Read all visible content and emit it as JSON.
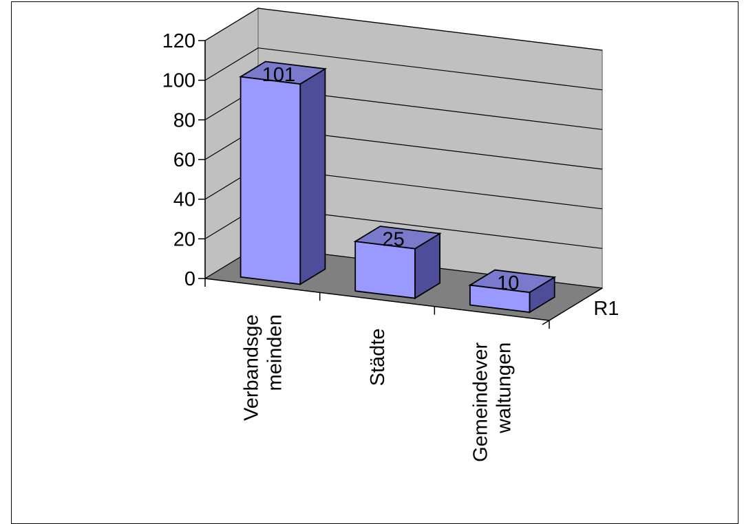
{
  "chart_data": {
    "type": "bar",
    "style": "3d-column",
    "categories": [
      "Verbandsgemeinden",
      "Städte",
      "Gemeindeverwaltungen"
    ],
    "category_label_lines": [
      [
        "Verbandsge",
        "meinden"
      ],
      [
        "Städte"
      ],
      [
        "Gemeindever",
        "waltungen"
      ]
    ],
    "series": [
      {
        "name": "R1",
        "values": [
          101,
          25,
          10
        ]
      }
    ],
    "data_labels": [
      "101",
      "25",
      "10"
    ],
    "yticks": [
      "0",
      "20",
      "40",
      "60",
      "80",
      "100",
      "120"
    ],
    "ylim": [
      0,
      120
    ],
    "grid": true,
    "legend": "none",
    "colors": {
      "bar_front": "#9999ff",
      "bar_side": "#4d4d99",
      "bar_top": "#7a7acc",
      "back_wall": "#c0c0c0",
      "side_wall": "#c0c0c0",
      "floor": "#808080",
      "gridline": "#000000"
    }
  }
}
